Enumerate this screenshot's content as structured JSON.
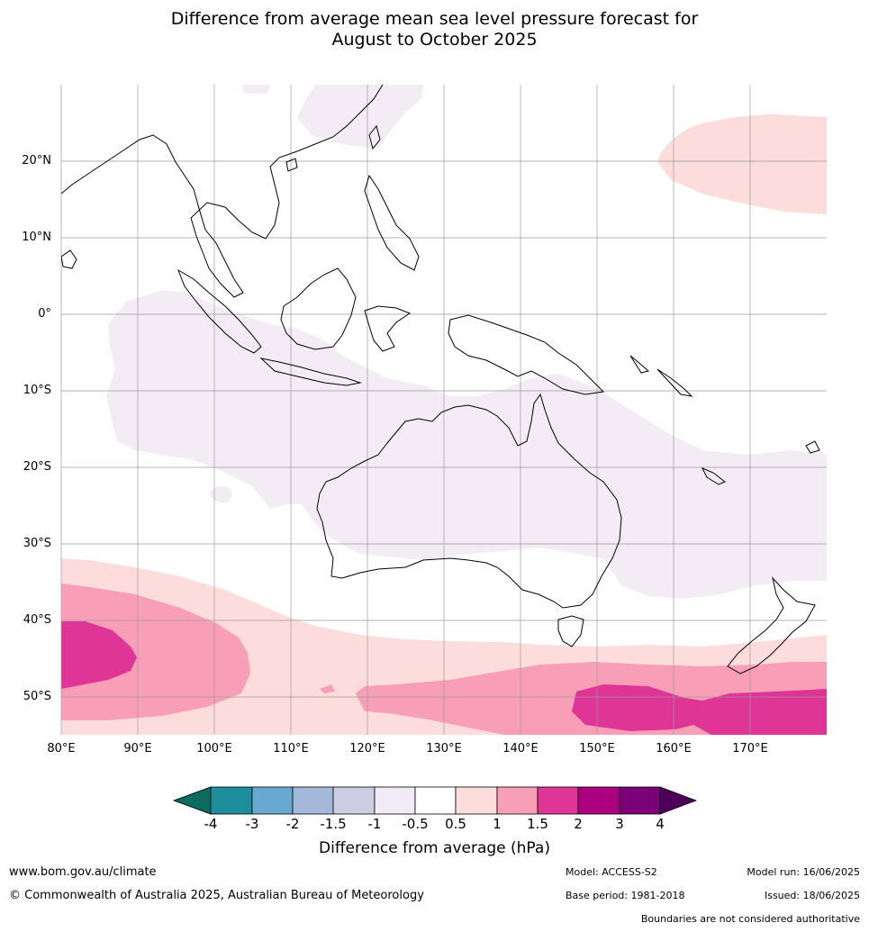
{
  "title": "Difference from average mean sea level pressure forecast for\nAugust to October 2025",
  "map": {
    "lon_labels": [
      "80°E",
      "90°E",
      "100°E",
      "110°E",
      "120°E",
      "130°E",
      "140°E",
      "150°E",
      "160°E",
      "170°E"
    ],
    "lat_labels": [
      "20°N",
      "10°N",
      "0°",
      "10°S",
      "20°S",
      "30°S",
      "40°S",
      "50°S"
    ],
    "extent": {
      "lon": [
        80,
        180
      ],
      "lat": [
        -55,
        30
      ]
    },
    "projection": "equirectangular",
    "gridlines": true
  },
  "colorbar": {
    "title": "Difference from average (hPa)",
    "tick_labels": [
      "-4",
      "-3",
      "-2",
      "-1.5",
      "-1",
      "-0.5",
      "0.5",
      "1",
      "1.5",
      "2",
      "3",
      "4"
    ],
    "colors": [
      "#0b6b5e",
      "#1f8e9c",
      "#67a9d0",
      "#a4b9da",
      "#cccce3",
      "#f1ebf5",
      "#ffffff",
      "#fddcdc",
      "#f89fb7",
      "#df3597",
      "#ac0080",
      "#7a0177",
      "#4d0057"
    ]
  },
  "footer": {
    "site": "www.bom.gov.au/climate",
    "copyright": "© Commonwealth of Australia 2025, Australian Bureau of Meteorology",
    "model": "Model: ACCESS-S2",
    "base_period": "Base period: 1981-2018",
    "model_run": "Model run: 16/06/2025",
    "issued": "Issued: 18/06/2025",
    "boundaries": "Boundaries are not considered authoritative"
  }
}
